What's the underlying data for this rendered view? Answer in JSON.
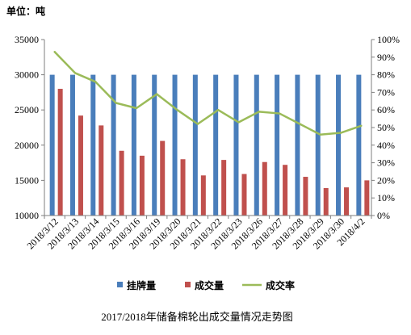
{
  "unit_label": "单位：吨",
  "chart_data": {
    "type": "bar",
    "title": "2017/2018年储备棉轮出成交量情况走势图",
    "categories": [
      "2018/3/12",
      "2018/3/13",
      "2018/3/14",
      "2018/3/15",
      "2018/3/16",
      "2018/3/19",
      "2018/3/20",
      "2018/3/21",
      "2018/3/22",
      "2018/3/23",
      "2018/3/26",
      "2018/3/27",
      "2018/3/28",
      "2018/3/29",
      "2018/3/30",
      "2018/4/2"
    ],
    "series": [
      {
        "name": "挂牌量",
        "type": "bar",
        "axis": "left",
        "color": "#4A7EBB",
        "values": [
          30000,
          30000,
          30000,
          30000,
          30000,
          30000,
          30000,
          30000,
          30000,
          30000,
          30000,
          30000,
          30000,
          30000,
          30000,
          30000
        ]
      },
      {
        "name": "成交量",
        "type": "bar",
        "axis": "left",
        "color": "#C0504D",
        "values": [
          28000,
          24200,
          22800,
          19200,
          18500,
          20600,
          18000,
          15700,
          17900,
          15900,
          17600,
          17200,
          15500,
          13900,
          14000,
          15000
        ]
      },
      {
        "name": "成交率",
        "type": "line",
        "axis": "right",
        "color": "#9BBB59",
        "values": [
          0.93,
          0.81,
          0.76,
          0.64,
          0.61,
          0.69,
          0.6,
          0.52,
          0.6,
          0.53,
          0.59,
          0.58,
          0.52,
          0.46,
          0.47,
          0.51
        ]
      }
    ],
    "y_left": {
      "min": 10000,
      "max": 35000,
      "step": 5000,
      "ticks": [
        "10000",
        "15000",
        "20000",
        "25000",
        "30000",
        "35000"
      ]
    },
    "y_right": {
      "min": 0,
      "max": 1,
      "step": 0.1,
      "ticks": [
        "0%",
        "10%",
        "20%",
        "30%",
        "40%",
        "50%",
        "60%",
        "70%",
        "80%",
        "90%",
        "100%"
      ]
    },
    "grid": false,
    "legend_position": "bottom"
  }
}
